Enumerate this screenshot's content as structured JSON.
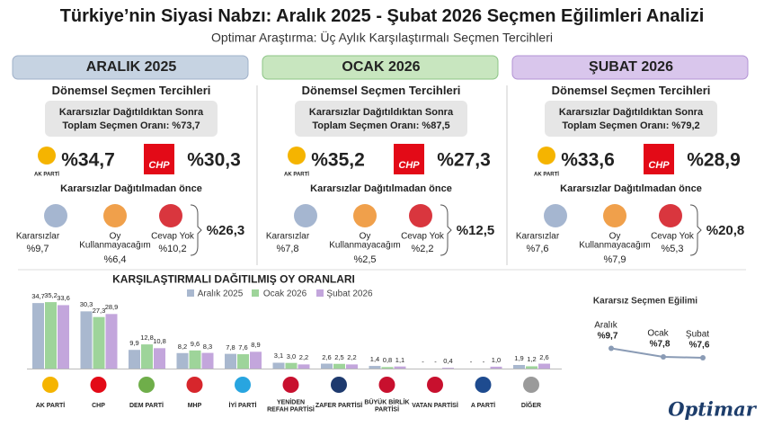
{
  "title": "Türkiye’nin Siyasi Nabzı: Aralık 2025 - Şubat 2026 Seçmen Eğilimleri Analizi",
  "subtitle": "Optimar Araştırma: Üç Aylık Karşılaştırmalı Seçmen Tercihleri",
  "periods": [
    {
      "header": "ARALIK 2025",
      "section_title": "Dönemsel Seçmen Tercihleri",
      "box_lines": [
        "Kararsızlar Dağıtıldıktan Sonra",
        "Toplam Seçmen Oranı: %73,7"
      ],
      "ak_logo": "AK PARTİ",
      "ak_value": "%34,7",
      "chp_logo": "CHP",
      "chp_value": "%30,3",
      "undecided_title": "Kararsızlar Dağıtılmadan önce",
      "items": [
        {
          "label": [
            "Kararsızlar"
          ],
          "value": "%9,7"
        },
        {
          "label": [
            "Oy",
            "Kullanmayacağım"
          ],
          "value": "%6,4"
        },
        {
          "label": [
            "Cevap Yok"
          ],
          "value": "%10,2"
        }
      ],
      "total": "%26,3"
    },
    {
      "header": "OCAK 2026",
      "section_title": "Dönemsel Seçmen Tercihleri",
      "box_lines": [
        "Kararsızlar Dağıtıldıktan Sonra",
        "Toplam Seçmen Oranı: %87,5"
      ],
      "ak_logo": "AK PARTİ",
      "ak_value": "%35,2",
      "chp_logo": "CHP",
      "chp_value": "%27,3",
      "undecided_title": "Kararsızlar Dağıtılmadan önce",
      "items": [
        {
          "label": [
            "Kararsızlar"
          ],
          "value": "%7,8"
        },
        {
          "label": [
            "Oy",
            "Kullanmayacağım"
          ],
          "value": "%2,5"
        },
        {
          "label": [
            "Cevap Yok"
          ],
          "value": "%2,2"
        }
      ],
      "total": "%12,5"
    },
    {
      "header": "ŞUBAT 2026",
      "section_title": "Dönemsel Seçmen Tercihleri",
      "box_lines": [
        "Kararsızlar Dağıtıldıktan Sonra",
        "Toplam Seçmen Oranı: %79,2"
      ],
      "ak_logo": "AK PARTİ",
      "ak_value": "%33,6",
      "chp_logo": "CHP",
      "chp_value": "%28,9",
      "undecided_title": "Kararsızlar Dağıtılmadan önce",
      "items": [
        {
          "label": [
            "Kararsızlar"
          ],
          "value": "%7,6"
        },
        {
          "label": [
            "Oy",
            "Kullanmayacağım"
          ],
          "value": "%7,9"
        },
        {
          "label": [
            "Cevap Yok"
          ],
          "value": "%5,3"
        }
      ],
      "total": "%20,8"
    }
  ],
  "chart_data": [
    {
      "type": "bar",
      "title": "KARŞILAŞTIRMALI DAĞITILMIŞ OY ORANLARI",
      "categories": [
        "AK PARTİ",
        "CHP",
        "DEM PARTİ",
        "MHP",
        "İYİ PARTİ",
        "YENİDEN REFAH PARTİSİ",
        "ZAFER PARTİSİ",
        "BÜYÜK BİRLİK PARTİSİ",
        "VATAN PARTİSİ",
        "A PARTİ",
        "DİĞER"
      ],
      "series": [
        {
          "name": "Aralık 2025",
          "color": "#a9b8cf",
          "values": [
            34.7,
            30.3,
            9.9,
            8.2,
            7.8,
            3.1,
            2.6,
            1.4,
            null,
            null,
            1.9
          ],
          "value_labels": [
            "34,7",
            "30,3",
            "9,9",
            "8,2",
            "7,8",
            "3,1",
            "2,6",
            "1,4",
            "-",
            "-",
            "1,9"
          ]
        },
        {
          "name": "Ocak 2026",
          "color": "#9ed49a",
          "values": [
            35.2,
            27.3,
            12.8,
            9.6,
            7.6,
            3.0,
            2.5,
            0.8,
            null,
            null,
            1.2
          ],
          "value_labels": [
            "35,2",
            "27,3",
            "12,8",
            "9,6",
            "7,6",
            "3,0",
            "2,5",
            "0,8",
            "-",
            "-",
            "1,2"
          ]
        },
        {
          "name": "Şubat 2026",
          "color": "#c3a6dc",
          "values": [
            33.6,
            28.9,
            10.8,
            8.3,
            8.9,
            2.2,
            2.2,
            1.1,
            0.4,
            1.0,
            2.6
          ],
          "value_labels": [
            "33,6",
            "28,9",
            "10,8",
            "8,3",
            "8,9",
            "2,2",
            "2,2",
            "1,1",
            "0,4",
            "1,0",
            "2,6"
          ]
        }
      ]
    },
    {
      "type": "line",
      "title": "Kararsız Seçmen Eğilimi",
      "categories": [
        "Aralık",
        "Ocak",
        "Şubat"
      ],
      "values": [
        9.7,
        7.8,
        7.6
      ],
      "value_labels": [
        "%9,7",
        "%7,8",
        "%7,6"
      ],
      "color": "#8a9bb5"
    }
  ],
  "brand": "Optimar"
}
